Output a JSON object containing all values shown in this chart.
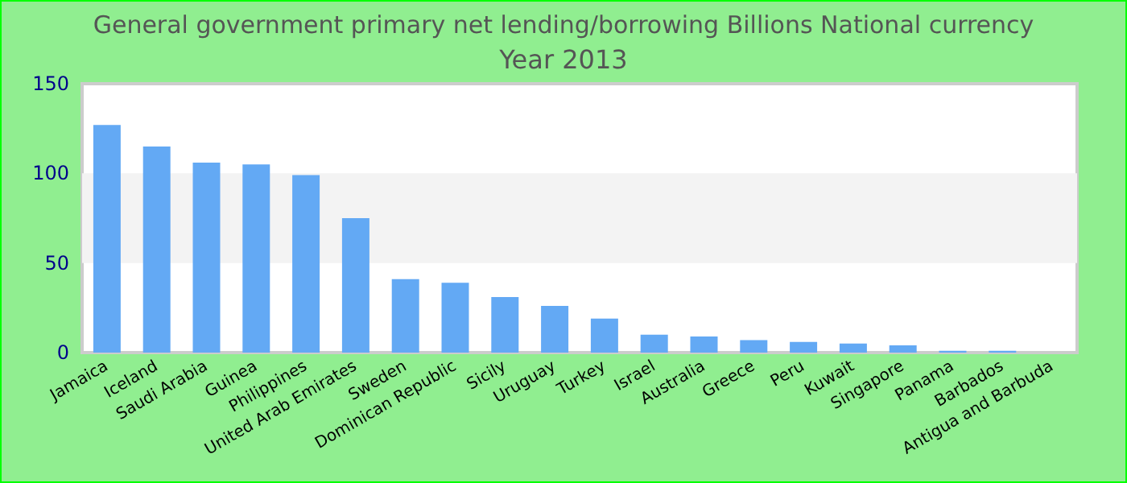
{
  "chart_data": {
    "type": "bar",
    "title": "General government primary net lending/borrowing Billions National currency",
    "subtitle": "Year 2013",
    "categories": [
      "Jamaica",
      "Iceland",
      "Saudi Arabia",
      "Guinea",
      "Philippines",
      "United Arab Emirates",
      "Sweden",
      "Dominican Republic",
      "Sicily",
      "Uruguay",
      "Turkey",
      "Israel",
      "Australia",
      "Greece",
      "Peru",
      "Kuwait",
      "Singapore",
      "Panama",
      "Barbados",
      "Antigua and Barbuda"
    ],
    "values": [
      127,
      115,
      106,
      105,
      99,
      75,
      41,
      39,
      31,
      26,
      19,
      10,
      9,
      7,
      6,
      5,
      4,
      1,
      1,
      0
    ],
    "color": "#63a9f4",
    "ylim": [
      0,
      150
    ],
    "yticks": [
      0,
      50,
      100,
      150
    ],
    "bands": [
      {
        "axis": "y",
        "from": 50,
        "to": 100,
        "color": "#f3f3f3"
      }
    ]
  }
}
